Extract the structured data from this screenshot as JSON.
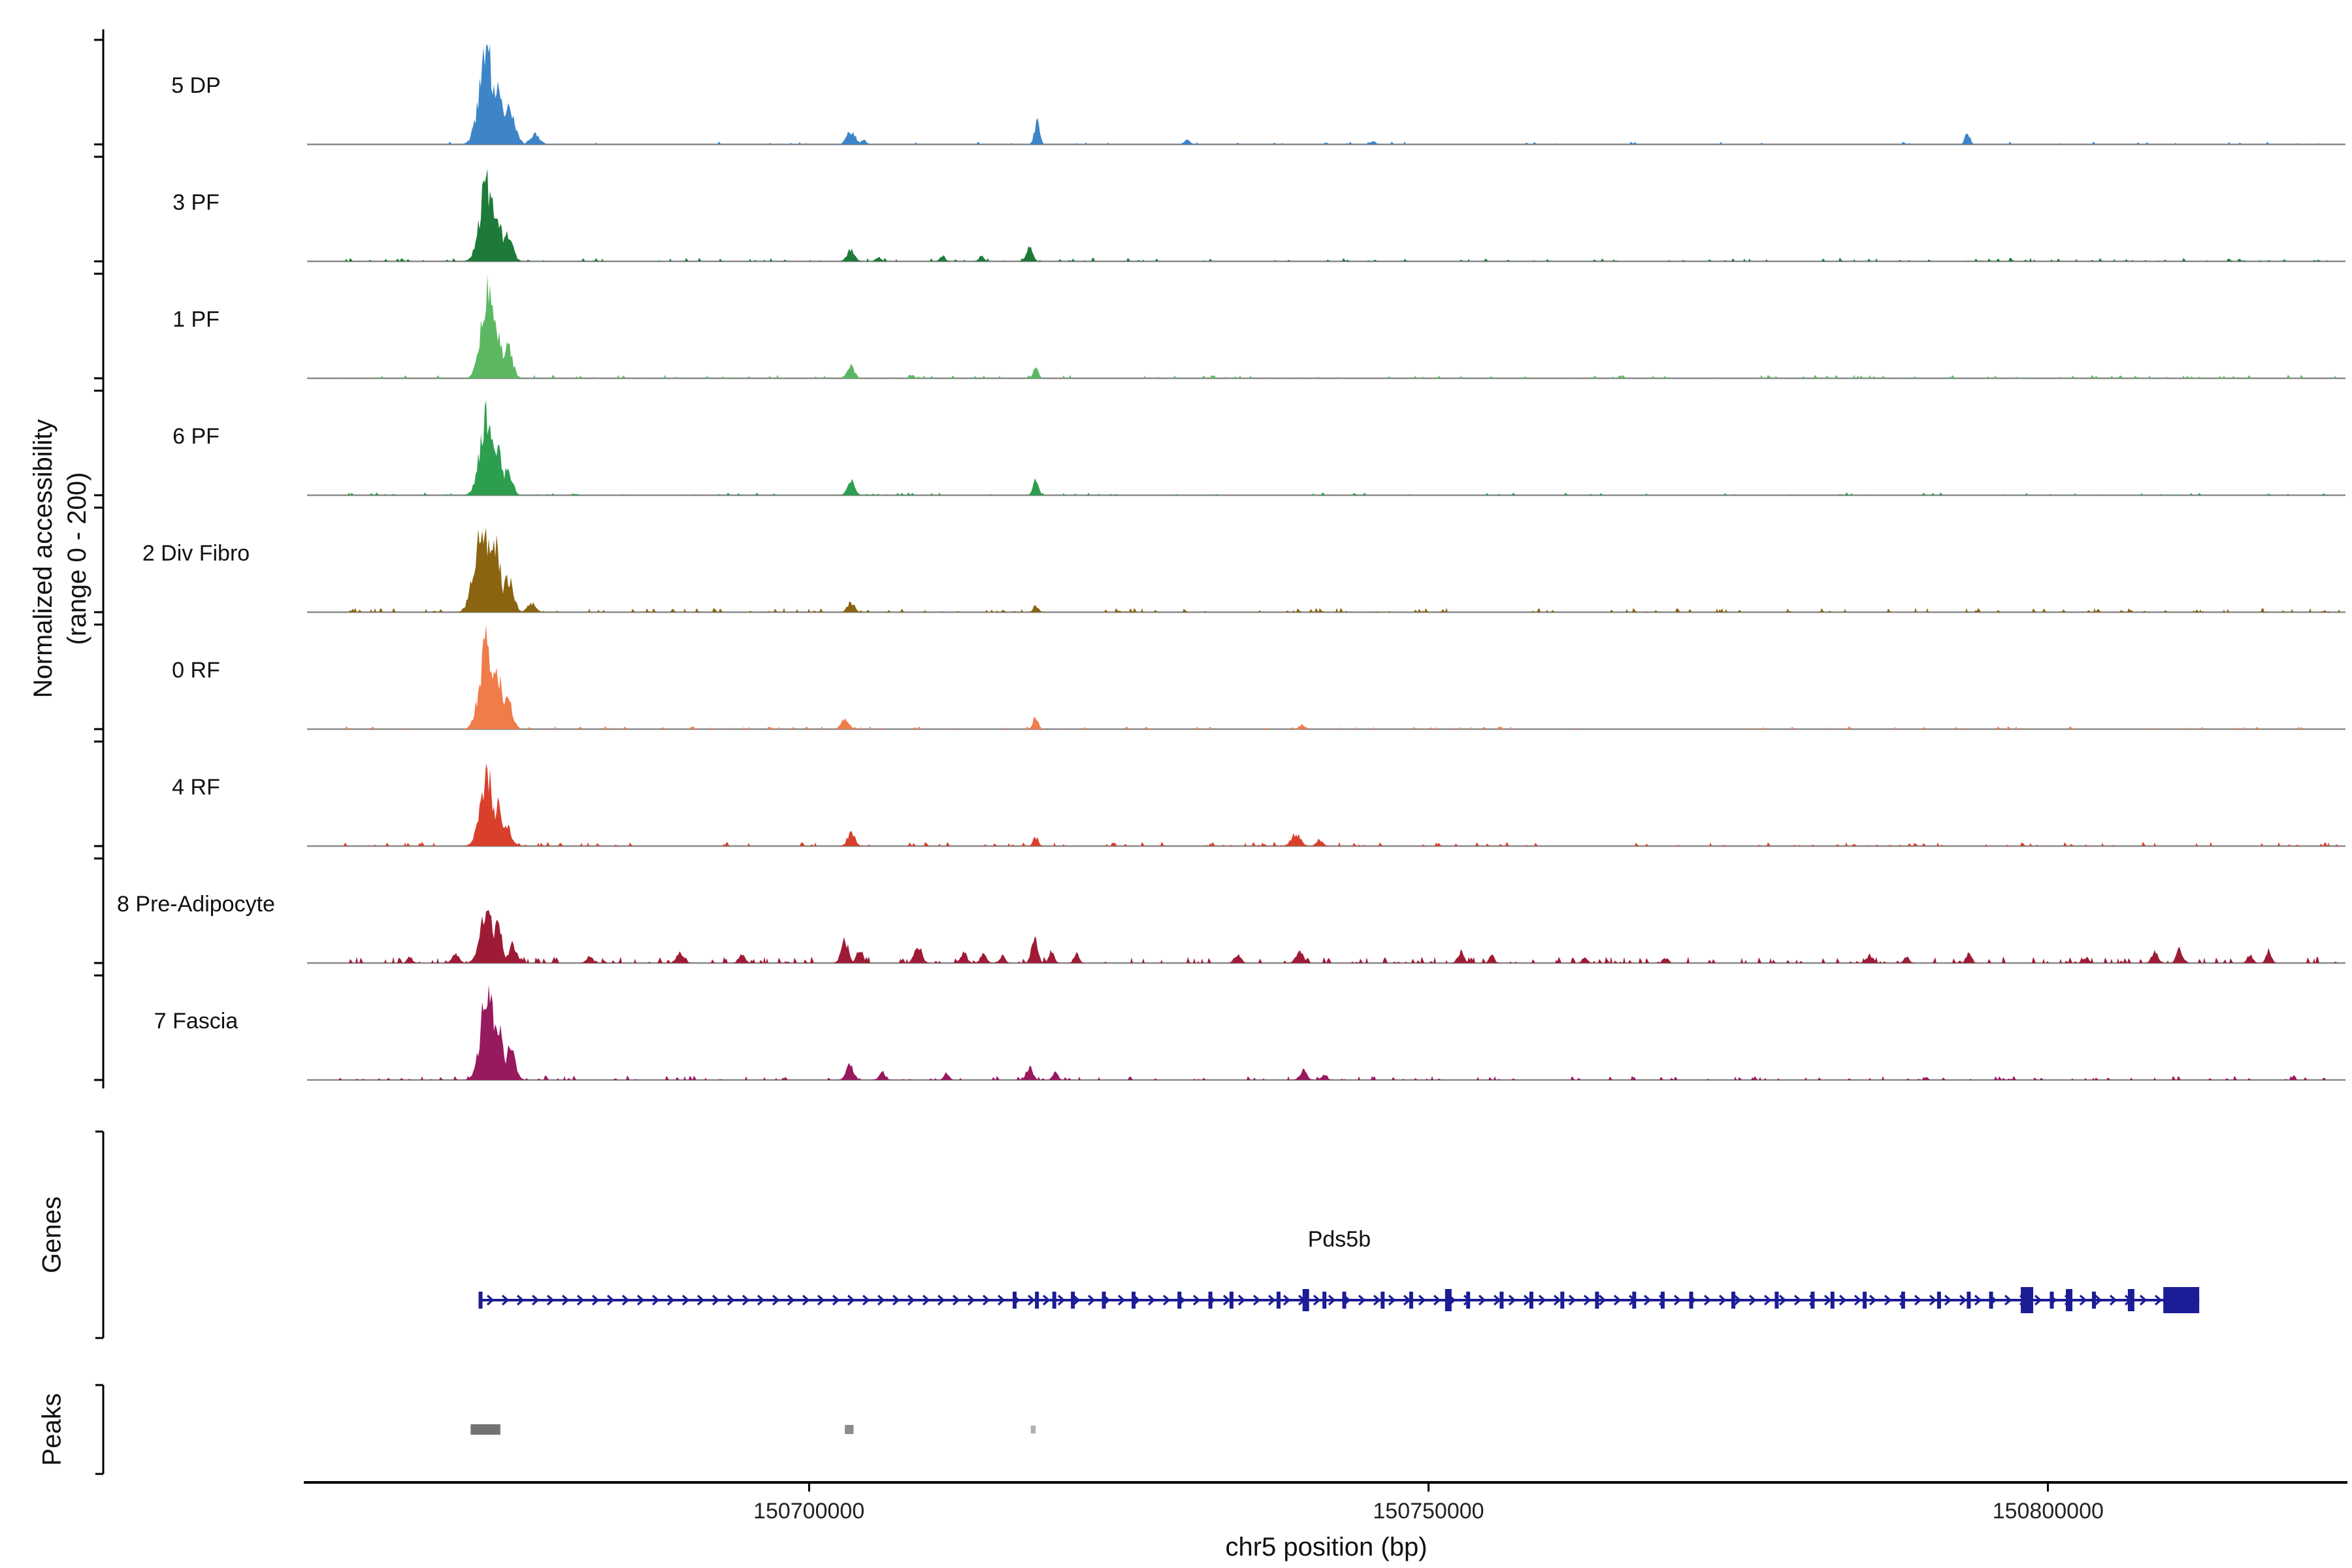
{
  "figure": {
    "background": "#ffffff"
  },
  "y_axis": {
    "label_line1": "Normalized accessibility",
    "label_line2": "(range 0 - 200)"
  },
  "sections": {
    "genes_label": "Genes",
    "peaks_label": "Peaks"
  },
  "chart_data": {
    "type": "area",
    "description": "Genome browser coverage plot of normalized chromatin accessibility per cell cluster over the Pds5b locus, with gene model and called peak regions",
    "region": "chr5:150659500-150824000",
    "signal_range": [
      0,
      200
    ],
    "x_axis": {
      "title": "chr5 position (bp)",
      "domain": [
        150659500,
        150824000
      ],
      "ticks": [
        {
          "bp": 150700000,
          "label": "150700000"
        },
        {
          "bp": 150750000,
          "label": "150750000"
        },
        {
          "bp": 150800000,
          "label": "150800000"
        }
      ]
    },
    "tracks": [
      {
        "label": "5 DP",
        "color": "#3d85c6",
        "noise": {
          "seed": 11,
          "level": 4,
          "density": 0.5
        },
        "peaks": [
          [
            150674000,
            200,
            1400
          ],
          [
            150674900,
            120,
            900
          ],
          [
            150675800,
            85,
            1100
          ],
          [
            150677900,
            22,
            900
          ],
          [
            150703400,
            30,
            800
          ],
          [
            150704400,
            12,
            500
          ],
          [
            150718400,
            48,
            500
          ],
          [
            150730500,
            9,
            600
          ],
          [
            150745500,
            7,
            500
          ],
          [
            150793500,
            27,
            450
          ]
        ]
      },
      {
        "label": "3 PF",
        "color": "#1e7a38",
        "noise": {
          "seed": 12,
          "level": 5,
          "density": 0.8
        },
        "peaks": [
          [
            150674000,
            172,
            1300
          ],
          [
            150674900,
            100,
            850
          ],
          [
            150675700,
            58,
            900
          ],
          [
            150703400,
            28,
            700
          ],
          [
            150705600,
            10,
            500
          ],
          [
            150710800,
            13,
            500
          ],
          [
            150713900,
            12,
            500
          ],
          [
            150717800,
            30,
            600
          ]
        ]
      },
      {
        "label": "1 PF",
        "color": "#5cb763",
        "noise": {
          "seed": 13,
          "level": 5,
          "density": 0.9
        },
        "peaks": [
          [
            150674100,
            192,
            1250
          ],
          [
            150674900,
            112,
            800
          ],
          [
            150675700,
            66,
            900
          ],
          [
            150703400,
            26,
            700
          ],
          [
            150708300,
            8,
            500
          ],
          [
            150718300,
            22,
            500
          ]
        ]
      },
      {
        "label": "6 PF",
        "color": "#2d9e4e",
        "noise": {
          "seed": 14,
          "level": 4,
          "density": 0.7
        },
        "peaks": [
          [
            150674000,
            166,
            1300
          ],
          [
            150674900,
            96,
            800
          ],
          [
            150675700,
            54,
            850
          ],
          [
            150703400,
            30,
            700
          ],
          [
            150718300,
            34,
            500
          ]
        ]
      },
      {
        "label": "2 Div Fibro",
        "color": "#8a6410",
        "noise": {
          "seed": 15,
          "level": 6,
          "density": 1.1
        },
        "peaks": [
          [
            150673700,
            196,
            1500
          ],
          [
            150674700,
            140,
            1000
          ],
          [
            150675700,
            78,
            1000
          ],
          [
            150677600,
            20,
            800
          ],
          [
            150703400,
            22,
            700
          ],
          [
            150718300,
            14,
            500
          ]
        ]
      },
      {
        "label": "0 RF",
        "color": "#f07c4a",
        "noise": {
          "seed": 16,
          "level": 4,
          "density": 0.7
        },
        "peaks": [
          [
            150674000,
            190,
            1300
          ],
          [
            150674900,
            115,
            850
          ],
          [
            150675700,
            60,
            900
          ],
          [
            150702900,
            26,
            700
          ],
          [
            150718300,
            28,
            500
          ],
          [
            150739800,
            9,
            600
          ]
        ]
      },
      {
        "label": "4 RF",
        "color": "#d8402c",
        "noise": {
          "seed": 17,
          "level": 6,
          "density": 1.0
        },
        "peaks": [
          [
            150674000,
            152,
            1250
          ],
          [
            150674900,
            90,
            800
          ],
          [
            150675600,
            50,
            800
          ],
          [
            150703400,
            30,
            700
          ],
          [
            150718300,
            20,
            500
          ],
          [
            150739300,
            26,
            900
          ],
          [
            150741200,
            14,
            600
          ]
        ]
      },
      {
        "label": "8 Pre-Adipocyte",
        "color": "#9e1b36",
        "noise": {
          "seed": 18,
          "level": 9,
          "density": 1.6
        },
        "peaks": [
          [
            150667800,
            14,
            500
          ],
          [
            150671500,
            18,
            700
          ],
          [
            150674000,
            126,
            1200
          ],
          [
            150674900,
            82,
            800
          ],
          [
            150676100,
            40,
            800
          ],
          [
            150682300,
            14,
            600
          ],
          [
            150689600,
            22,
            700
          ],
          [
            150694600,
            18,
            600
          ],
          [
            150702900,
            48,
            700
          ],
          [
            150704100,
            30,
            600
          ],
          [
            150708800,
            42,
            700
          ],
          [
            150712500,
            24,
            600
          ],
          [
            150714100,
            20,
            600
          ],
          [
            150715600,
            17,
            500
          ],
          [
            150718200,
            52,
            600
          ],
          [
            150719600,
            28,
            500
          ],
          [
            150721600,
            22,
            500
          ],
          [
            150734600,
            20,
            600
          ],
          [
            150739600,
            26,
            700
          ],
          [
            150752600,
            24,
            600
          ],
          [
            150755100,
            18,
            500
          ],
          [
            150762600,
            13,
            500
          ],
          [
            150769100,
            12,
            500
          ],
          [
            150785600,
            18,
            600
          ],
          [
            150788600,
            14,
            500
          ],
          [
            150793600,
            22,
            500
          ],
          [
            150803100,
            12,
            500
          ],
          [
            150808600,
            24,
            600
          ],
          [
            150810600,
            30,
            600
          ],
          [
            150816300,
            20,
            500
          ],
          [
            150817800,
            27,
            500
          ]
        ]
      },
      {
        "label": "7 Fascia",
        "color": "#97195e",
        "noise": {
          "seed": 19,
          "level": 6,
          "density": 1.1
        },
        "peaks": [
          [
            150674100,
            200,
            1300
          ],
          [
            150674900,
            130,
            900
          ],
          [
            150675900,
            70,
            900
          ],
          [
            150703300,
            36,
            700
          ],
          [
            150705900,
            18,
            600
          ],
          [
            150711100,
            14,
            500
          ],
          [
            150717800,
            30,
            600
          ],
          [
            150719900,
            20,
            500
          ],
          [
            150739900,
            20,
            700
          ],
          [
            150741600,
            12,
            500
          ]
        ]
      }
    ],
    "gene": {
      "name": "Pds5b",
      "strand": "+",
      "start": 150673400,
      "end": 150812200,
      "color": "#1c1c96",
      "exons": [
        {
          "bp": 150673500,
          "type": "tick"
        },
        {
          "bp": 150716600,
          "type": "tick"
        },
        {
          "bp": 150718400,
          "type": "tick"
        },
        {
          "bp": 150719800,
          "type": "tick"
        },
        {
          "bp": 150721300,
          "type": "tick"
        },
        {
          "bp": 150723800,
          "type": "tick"
        },
        {
          "bp": 150726200,
          "type": "tick"
        },
        {
          "bp": 150729900,
          "type": "tick"
        },
        {
          "bp": 150732400,
          "type": "tick"
        },
        {
          "bp": 150734100,
          "type": "tick"
        },
        {
          "bp": 150737900,
          "type": "tick"
        },
        {
          "bp": 150740100,
          "type": "box"
        },
        {
          "bp": 150741600,
          "type": "tick"
        },
        {
          "bp": 150743200,
          "type": "tick"
        },
        {
          "bp": 150746300,
          "type": "tick"
        },
        {
          "bp": 150748600,
          "type": "tick"
        },
        {
          "bp": 150751600,
          "type": "box"
        },
        {
          "bp": 150753200,
          "type": "tick"
        },
        {
          "bp": 150755900,
          "type": "tick"
        },
        {
          "bp": 150758300,
          "type": "tick"
        },
        {
          "bp": 150760800,
          "type": "tick"
        },
        {
          "bp": 150763600,
          "type": "tick"
        },
        {
          "bp": 150766600,
          "type": "tick"
        },
        {
          "bp": 150768900,
          "type": "tick"
        },
        {
          "bp": 150771200,
          "type": "tick"
        },
        {
          "bp": 150774600,
          "type": "tick"
        },
        {
          "bp": 150778100,
          "type": "tick"
        },
        {
          "bp": 150781000,
          "type": "tick"
        },
        {
          "bp": 150782600,
          "type": "tick"
        },
        {
          "bp": 150785200,
          "type": "tick"
        },
        {
          "bp": 150788300,
          "type": "tick"
        },
        {
          "bp": 150791200,
          "type": "tick"
        },
        {
          "bp": 150793600,
          "type": "tick"
        },
        {
          "bp": 150795400,
          "type": "tick"
        },
        {
          "bp": 150800300,
          "type": "tick"
        },
        {
          "bp": 150801700,
          "type": "box"
        },
        {
          "bp": 150803700,
          "type": "tick"
        },
        {
          "bp": 150806700,
          "type": "box"
        }
      ],
      "big_exons": [
        {
          "start": 150797800,
          "end": 150798800
        },
        {
          "start": 150809300,
          "end": 150812200
        }
      ]
    },
    "peak_regions": [
      {
        "start": 150672700,
        "end": 150675100,
        "color": "#737373",
        "height": 16
      },
      {
        "start": 150702900,
        "end": 150703600,
        "color": "#8c8c8c",
        "height": 14
      },
      {
        "start": 150717900,
        "end": 150718300,
        "color": "#b0b0b0",
        "height": 12
      }
    ]
  }
}
